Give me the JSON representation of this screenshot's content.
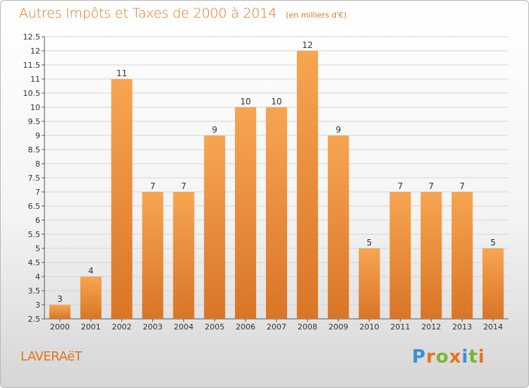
{
  "header": {
    "title": "Autres Impôts et Taxes de 2000 à 2014",
    "subtitle": "(en milliers d'€)"
  },
  "footer": {
    "commune": "LAVERAëT",
    "brand": "Proxiti",
    "brand_letters": [
      {
        "ch": "P",
        "color": "#3a8fd8"
      },
      {
        "ch": "r",
        "color": "#e8731e"
      },
      {
        "ch": "o",
        "color": "#7ab532"
      },
      {
        "ch": "x",
        "color": "#e8731e"
      },
      {
        "ch": "i",
        "color": "#3a8fd8"
      },
      {
        "ch": "t",
        "color": "#7ab532"
      },
      {
        "ch": "i",
        "color": "#e8731e"
      }
    ]
  },
  "colors": {
    "title": "#e07420",
    "bar_light": "#f7a552",
    "bar_dark": "#d97526",
    "grid": "#d4d4d4",
    "axis_text": "#333333"
  },
  "chart_data": {
    "type": "bar",
    "title": "Autres Impôts et Taxes de 2000 à 2014",
    "subtitle": "(en milliers d'€)",
    "categories": [
      "2000",
      "2001",
      "2002",
      "2003",
      "2004",
      "2005",
      "2006",
      "2007",
      "2008",
      "2009",
      "2010",
      "2011",
      "2012",
      "2013",
      "2014"
    ],
    "values": [
      3,
      4,
      11,
      7,
      7,
      9,
      10,
      10,
      12,
      9,
      5,
      7,
      7,
      7,
      5
    ],
    "ylim": [
      2.5,
      12.5
    ],
    "yticks": [
      "2.5",
      "3",
      "3.5",
      "4",
      "4.5",
      "5",
      "5.5",
      "6",
      "6.5",
      "7",
      "7.5",
      "8",
      "8.5",
      "9",
      "9.5",
      "10",
      "10.5",
      "11",
      "11.5",
      "12",
      "12.5"
    ],
    "grid": true,
    "legend": false
  }
}
